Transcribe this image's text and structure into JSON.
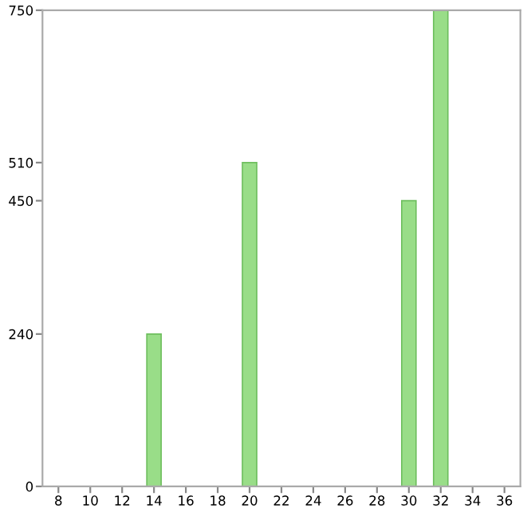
{
  "chart_data": {
    "type": "bar",
    "x": [
      14,
      20,
      30,
      32
    ],
    "values": [
      240,
      510,
      450,
      750
    ],
    "color": "#99dd88",
    "xlim": [
      7,
      37
    ],
    "ylim": [
      0,
      750
    ],
    "xticks": [
      8,
      10,
      12,
      14,
      16,
      18,
      20,
      22,
      24,
      26,
      28,
      30,
      32,
      34,
      36
    ],
    "yticks": [
      0,
      240,
      450,
      510,
      750
    ],
    "grid": false,
    "legend": false
  }
}
